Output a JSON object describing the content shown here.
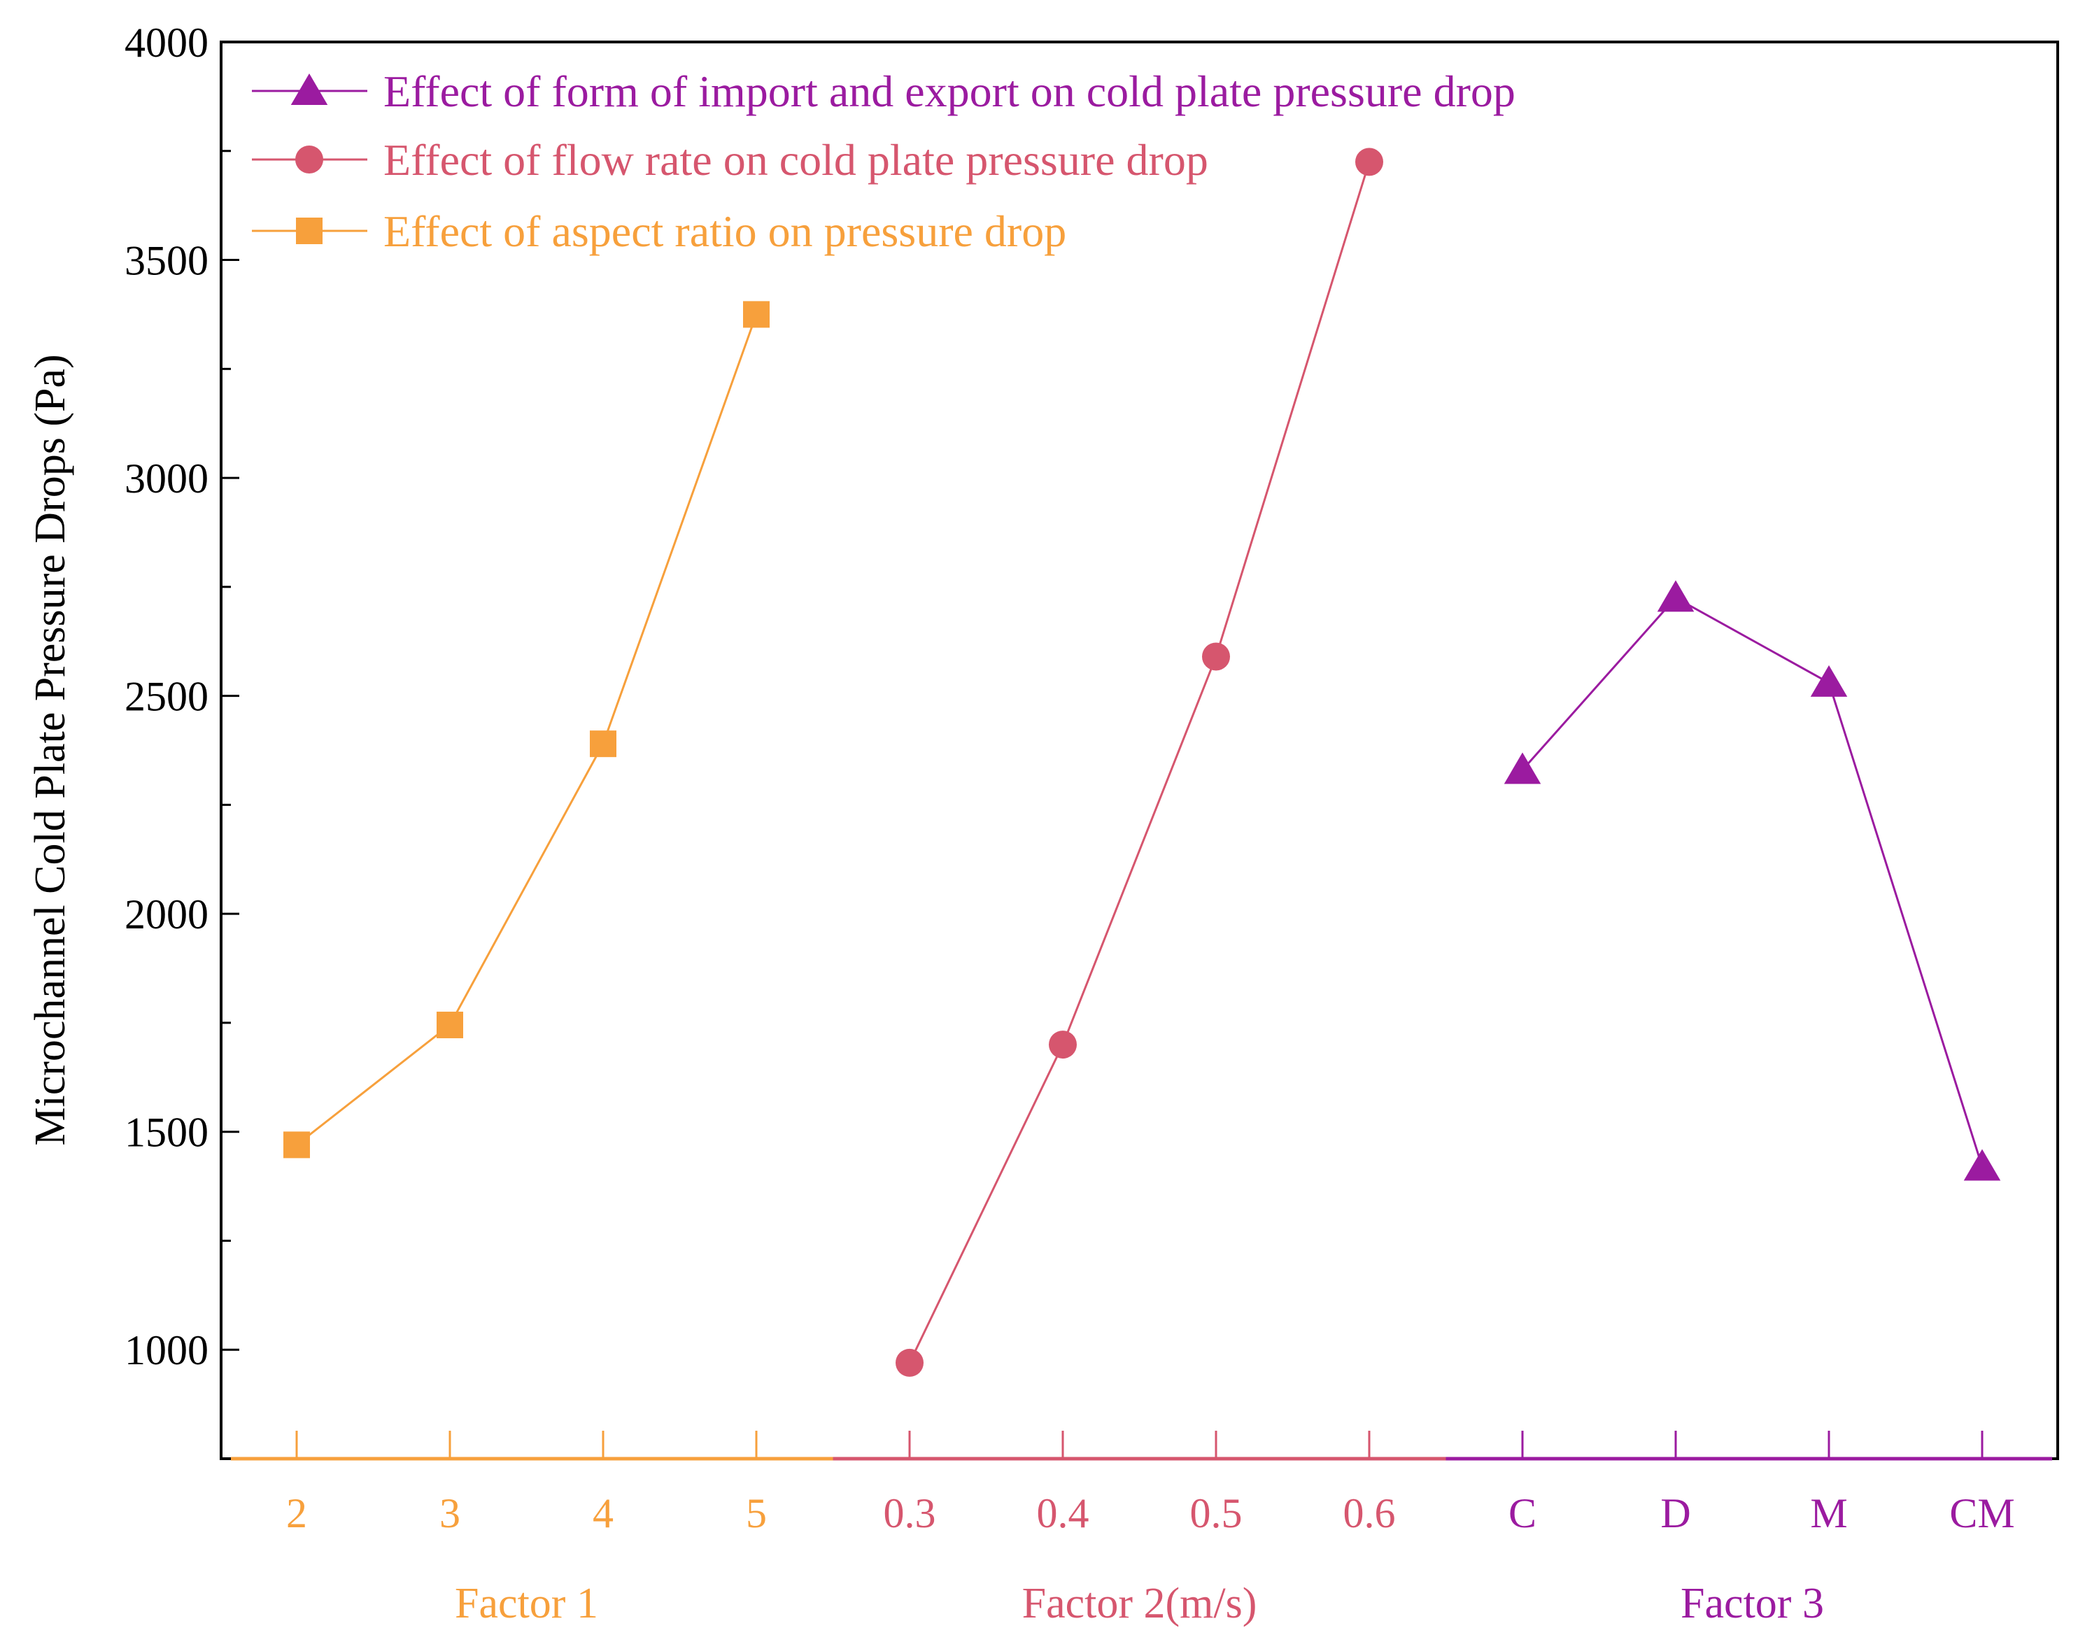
{
  "chart_data": {
    "type": "line",
    "title": "",
    "ylabel": "Microchannel Cold Plate Pressure Drops (Pa)",
    "ylim": [
      750,
      4000
    ],
    "yticks": [
      1000,
      1500,
      2000,
      2500,
      3000,
      3500,
      4000
    ],
    "y_minor_step": 250,
    "legend_position": "top-left",
    "grid": false,
    "groups": [
      {
        "name": "Factor 1",
        "xlabel": "Factor 1",
        "color": "#F7A03C",
        "categories": [
          "2",
          "3",
          "4",
          "5"
        ]
      },
      {
        "name": "Factor 2",
        "xlabel": "Factor 2(m/s)",
        "color": "#D6566E",
        "categories": [
          "0.3",
          "0.4",
          "0.5",
          "0.6"
        ]
      },
      {
        "name": "Factor 3",
        "xlabel": "Factor 3",
        "color": "#9B1BA0",
        "categories": [
          "C",
          "D",
          "M",
          "CM"
        ]
      }
    ],
    "series": [
      {
        "name": "Effect of form of import and export on cold plate pressure drop",
        "group": 2,
        "marker": "triangle",
        "color": "#9B1BA0",
        "values": [
          2330,
          2725,
          2530,
          1420
        ]
      },
      {
        "name": "Effect of flow rate on cold plate pressure drop",
        "group": 1,
        "marker": "circle",
        "color": "#D6566E",
        "values": [
          970,
          1700,
          2590,
          3725
        ]
      },
      {
        "name": "Effect of aspect ratio on pressure drop",
        "group": 0,
        "marker": "square",
        "color": "#F7A03C",
        "values": [
          1470,
          1745,
          2390,
          3375
        ]
      }
    ]
  }
}
